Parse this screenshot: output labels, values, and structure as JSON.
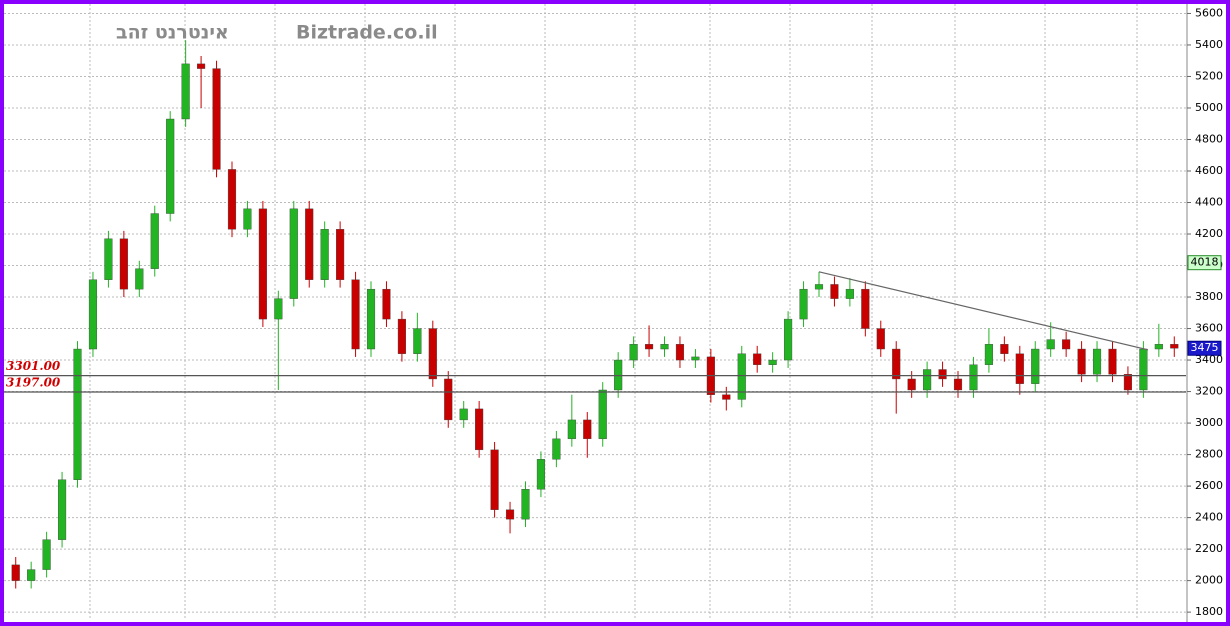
{
  "chart_data": {
    "type": "candlestick",
    "title": "אינטרנט זהב",
    "watermark": "Biztrade.co.il",
    "up_color": "#22b422",
    "down_color": "#c80000",
    "ylim": [
      1750,
      5660
    ],
    "yticks": [
      1800,
      2000,
      2200,
      2400,
      2600,
      2800,
      3000,
      3200,
      3400,
      3600,
      3800,
      4000,
      4200,
      4400,
      4600,
      4800,
      5000,
      5200,
      5400,
      5600
    ],
    "grid": true,
    "levels": [
      {
        "value": 3301,
        "label": "3301.00"
      },
      {
        "value": 3197,
        "label": "3197.00"
      }
    ],
    "trendline": {
      "start": 3960,
      "end": 3465
    },
    "markers": [
      {
        "value": 4018,
        "color": "#ccffcc"
      },
      {
        "value": 3475,
        "color": "#1a1acc"
      }
    ],
    "candles": [
      [
        2100,
        2150,
        1950,
        2000
      ],
      [
        2000,
        2120,
        1950,
        2070
      ],
      [
        2070,
        2310,
        2020,
        2260
      ],
      [
        2260,
        2690,
        2210,
        2640
      ],
      [
        2640,
        3520,
        2590,
        3470
      ],
      [
        3470,
        3960,
        3420,
        3910
      ],
      [
        3910,
        4220,
        3860,
        4170
      ],
      [
        4170,
        4220,
        3800,
        3850
      ],
      [
        3850,
        4030,
        3800,
        3980
      ],
      [
        3980,
        4380,
        3930,
        4330
      ],
      [
        4330,
        4980,
        4280,
        4930
      ],
      [
        4930,
        5430,
        4880,
        5280
      ],
      [
        5280,
        5330,
        5000,
        5250
      ],
      [
        5250,
        5300,
        4560,
        4610
      ],
      [
        4610,
        4660,
        4180,
        4230
      ],
      [
        4230,
        4410,
        4180,
        4360
      ],
      [
        4360,
        4410,
        3610,
        3660
      ],
      [
        3660,
        3840,
        3210,
        3790
      ],
      [
        3790,
        4410,
        3740,
        4360
      ],
      [
        4360,
        4410,
        3860,
        3910
      ],
      [
        3910,
        4280,
        3860,
        4230
      ],
      [
        4230,
        4280,
        3860,
        3910
      ],
      [
        3910,
        3960,
        3420,
        3470
      ],
      [
        3470,
        3900,
        3420,
        3850
      ],
      [
        3850,
        3900,
        3610,
        3660
      ],
      [
        3660,
        3710,
        3390,
        3440
      ],
      [
        3440,
        3700,
        3390,
        3600
      ],
      [
        3600,
        3650,
        3230,
        3280
      ],
      [
        3280,
        3330,
        2970,
        3020
      ],
      [
        3020,
        3140,
        2970,
        3090
      ],
      [
        3090,
        3140,
        2780,
        2830
      ],
      [
        2830,
        2880,
        2400,
        2450
      ],
      [
        2450,
        2500,
        2300,
        2390
      ],
      [
        2390,
        2630,
        2340,
        2580
      ],
      [
        2580,
        2820,
        2530,
        2770
      ],
      [
        2770,
        2950,
        2720,
        2900
      ],
      [
        2900,
        3180,
        2850,
        3020
      ],
      [
        3020,
        3070,
        2780,
        2900
      ],
      [
        2900,
        3260,
        2850,
        3210
      ],
      [
        3210,
        3450,
        3160,
        3400
      ],
      [
        3400,
        3550,
        3350,
        3500
      ],
      [
        3500,
        3620,
        3420,
        3470
      ],
      [
        3470,
        3550,
        3420,
        3500
      ],
      [
        3500,
        3550,
        3350,
        3400
      ],
      [
        3400,
        3470,
        3350,
        3420
      ],
      [
        3420,
        3470,
        3130,
        3180
      ],
      [
        3180,
        3230,
        3080,
        3150
      ],
      [
        3150,
        3490,
        3100,
        3440
      ],
      [
        3440,
        3490,
        3320,
        3370
      ],
      [
        3370,
        3450,
        3320,
        3400
      ],
      [
        3400,
        3710,
        3350,
        3660
      ],
      [
        3660,
        3900,
        3610,
        3850
      ],
      [
        3850,
        3960,
        3800,
        3880
      ],
      [
        3880,
        3930,
        3740,
        3790
      ],
      [
        3790,
        3920,
        3740,
        3850
      ],
      [
        3850,
        3900,
        3550,
        3600
      ],
      [
        3600,
        3650,
        3420,
        3470
      ],
      [
        3470,
        3520,
        3060,
        3280
      ],
      [
        3280,
        3330,
        3160,
        3210
      ],
      [
        3210,
        3390,
        3160,
        3340
      ],
      [
        3340,
        3390,
        3230,
        3280
      ],
      [
        3280,
        3330,
        3160,
        3210
      ],
      [
        3210,
        3420,
        3160,
        3370
      ],
      [
        3370,
        3600,
        3320,
        3500
      ],
      [
        3500,
        3550,
        3390,
        3440
      ],
      [
        3440,
        3490,
        3180,
        3250
      ],
      [
        3250,
        3520,
        3200,
        3470
      ],
      [
        3470,
        3640,
        3420,
        3530
      ],
      [
        3530,
        3580,
        3420,
        3470
      ],
      [
        3470,
        3520,
        3260,
        3310
      ],
      [
        3310,
        3520,
        3260,
        3470
      ],
      [
        3470,
        3520,
        3260,
        3310
      ],
      [
        3310,
        3360,
        3180,
        3210
      ],
      [
        3210,
        3520,
        3160,
        3470
      ],
      [
        3470,
        3630,
        3420,
        3500
      ],
      [
        3500,
        3550,
        3420,
        3475
      ]
    ]
  }
}
